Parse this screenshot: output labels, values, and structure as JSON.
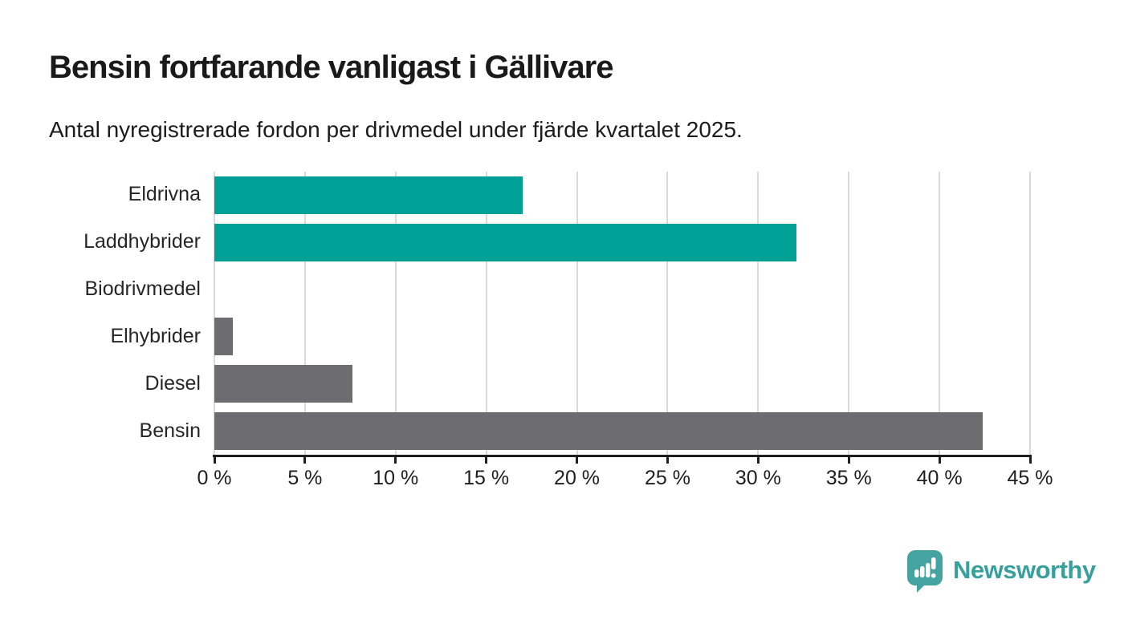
{
  "title": "Bensin fortfarande vanligast i Gällivare",
  "subtitle": "Antal nyregistrerade fordon per drivmedel under fjärde kvartalet 2025.",
  "chart_data": {
    "type": "bar",
    "orientation": "horizontal",
    "title": "Bensin fortfarande vanligast i Gällivare",
    "subtitle": "Antal nyregistrerade fordon per drivmedel under fjärde kvartalet 2025.",
    "categories": [
      "Eldrivna",
      "Laddhybrider",
      "Biodrivmedel",
      "Elhybrider",
      "Diesel",
      "Bensin"
    ],
    "values": [
      17.0,
      32.1,
      0,
      1.0,
      7.6,
      42.4
    ],
    "unit": "%",
    "xlim": [
      0,
      45
    ],
    "x_ticks": [
      0,
      5,
      10,
      15,
      20,
      25,
      30,
      35,
      40,
      45
    ],
    "x_tick_suffix": " %",
    "grid": true,
    "legend": "none",
    "bar_colors": [
      "#00a096",
      "#00a096",
      "#6c6c71",
      "#6c6c71",
      "#6c6c71",
      "#6c6c71"
    ]
  },
  "colors": {
    "teal": "#00a096",
    "gray": "#6c6c71",
    "gridline": "#dadada",
    "axis": "#1f1f1f",
    "text": "#1a1a1a",
    "brand_teal": "#45a3a1"
  },
  "footer": {
    "brand": "Newsworthy",
    "logo_icon": "newsworthy-speech-bubble-chart-icon"
  }
}
